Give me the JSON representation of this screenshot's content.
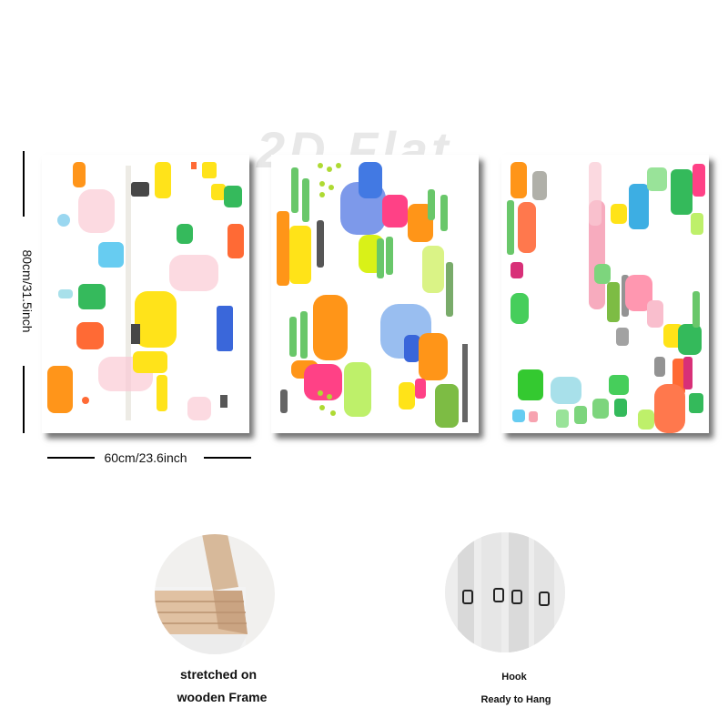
{
  "watermark": "2D Flat",
  "dimensions": {
    "height_label": "80cm/31.5inch",
    "width_label": "60cm/23.6inch"
  },
  "details": {
    "frame": {
      "line1": "stretched on",
      "line2": "wooden Frame"
    },
    "hook": {
      "line1": "Hook",
      "line2": "Ready to Hang"
    }
  },
  "colors": {
    "panel_shadow": "#333333",
    "text": "#111111",
    "paint": [
      "#ff8a00",
      "#ffe000",
      "#1fb34a",
      "#29a6e0",
      "#ff2d7a",
      "#2456d6",
      "#a6d61e",
      "#444444",
      "#f9b7c8",
      "#ff5a1f"
    ]
  }
}
